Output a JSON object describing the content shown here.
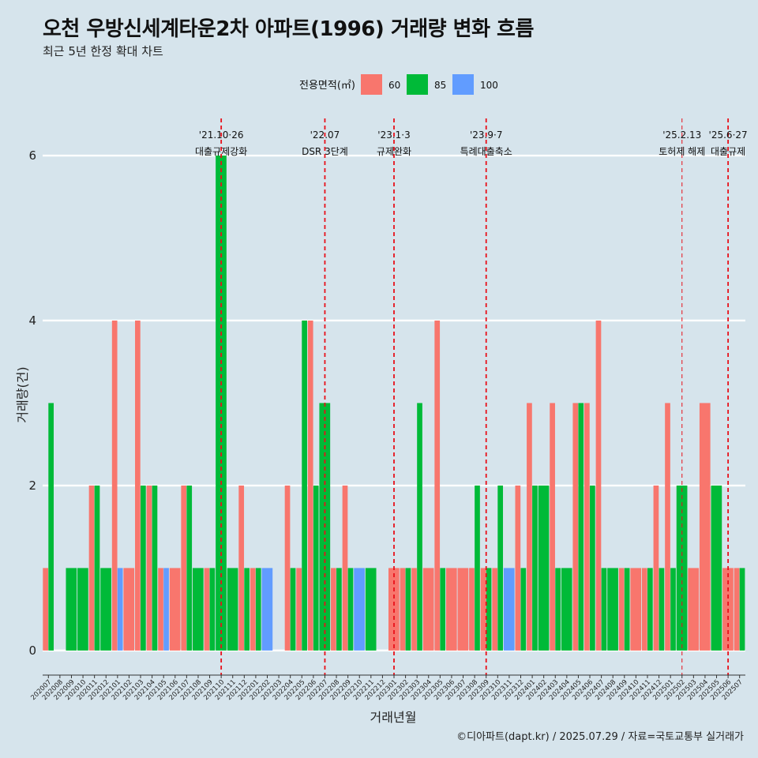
{
  "chart_data": {
    "type": "bar",
    "title": "오천 우방신세계타운2차 아파트(1996) 거래량 변화 흐름",
    "subtitle": "최근 5년 한정 확대 차트",
    "xlabel": "거래년월",
    "ylabel": "거래량(건)",
    "ylim": [
      -0.25,
      6.45
    ],
    "yticks": [
      0,
      2,
      4,
      6
    ],
    "legend": {
      "title": "전용면적(㎡)",
      "placement": "top"
    },
    "caption": "©디아파트(dapt.kr) / 2025.07.29 / 자료=국토교통부 실거래가",
    "categories": [
      "202007",
      "202008",
      "202009",
      "202010",
      "202011",
      "202012",
      "202101",
      "202102",
      "202103",
      "202104",
      "202105",
      "202106",
      "202107",
      "202108",
      "202109",
      "202110",
      "202111",
      "202112",
      "202201",
      "202202",
      "202203",
      "202204",
      "202205",
      "202206",
      "202207",
      "202208",
      "202209",
      "202210",
      "202211",
      "202212",
      "202301",
      "202302",
      "202303",
      "202304",
      "202305",
      "202306",
      "202307",
      "202308",
      "202309",
      "202310",
      "202311",
      "202312",
      "202401",
      "202402",
      "202403",
      "202404",
      "202405",
      "202406",
      "202407",
      "202408",
      "202409",
      "202410",
      "202411",
      "202412",
      "202501",
      "202502",
      "202503",
      "202504",
      "202505",
      "202506",
      "202507"
    ],
    "series": [
      {
        "name": "60",
        "color": "#f8766d",
        "values": [
          1,
          0,
          0,
          0,
          2,
          0,
          4,
          1,
          4,
          2,
          1,
          1,
          2,
          0,
          1,
          0,
          0,
          2,
          1,
          0,
          0,
          2,
          1,
          4,
          0,
          1,
          2,
          0,
          0,
          0,
          1,
          1,
          1,
          1,
          4,
          1,
          1,
          1,
          1,
          1,
          0,
          2,
          3,
          0,
          3,
          0,
          3,
          3,
          4,
          0,
          1,
          1,
          1,
          2,
          3,
          0,
          1,
          3,
          0,
          1,
          1
        ]
      },
      {
        "name": "85",
        "color": "#00ba38",
        "values": [
          3,
          0,
          1,
          1,
          2,
          1,
          0,
          0,
          2,
          2,
          0,
          0,
          2,
          1,
          1,
          6,
          1,
          1,
          1,
          0,
          0,
          1,
          4,
          2,
          3,
          1,
          1,
          0,
          1,
          0,
          0,
          1,
          3,
          0,
          1,
          0,
          0,
          2,
          1,
          2,
          0,
          1,
          2,
          2,
          1,
          1,
          3,
          2,
          1,
          1,
          1,
          0,
          1,
          1,
          1,
          2,
          0,
          0,
          2,
          0,
          1
        ]
      },
      {
        "name": "100",
        "color": "#619cff",
        "values": [
          0,
          0,
          0,
          0,
          0,
          0,
          1,
          0,
          0,
          0,
          1,
          0,
          0,
          0,
          0,
          0,
          0,
          0,
          0,
          1,
          0,
          0,
          0,
          0,
          0,
          0,
          0,
          1,
          0,
          0,
          0,
          0,
          0,
          0,
          0,
          0,
          0,
          0,
          0,
          0,
          1,
          0,
          0,
          0,
          0,
          0,
          0,
          0,
          0,
          0,
          0,
          0,
          0,
          0,
          0,
          0,
          0,
          0,
          0,
          0,
          0
        ]
      }
    ],
    "annotations": [
      {
        "category": "202110",
        "date": "'21.10·26",
        "label": "대출규제강화",
        "style": "thick"
      },
      {
        "category": "202207",
        "date": "'22.07",
        "label": "DSR 3단계",
        "style": "thick"
      },
      {
        "category": "202301",
        "date": "'23.1·3",
        "label": "규제완화",
        "style": "thick"
      },
      {
        "category": "202309",
        "date": "'23.9·7",
        "label": "특례대출축소",
        "style": "thick"
      },
      {
        "category": "202502",
        "date": "'25.2.13",
        "label": "토허제 해제",
        "style": "thin"
      },
      {
        "category": "202506",
        "date": "'25.6·27",
        "label": "대출규제",
        "style": "thick"
      }
    ]
  }
}
